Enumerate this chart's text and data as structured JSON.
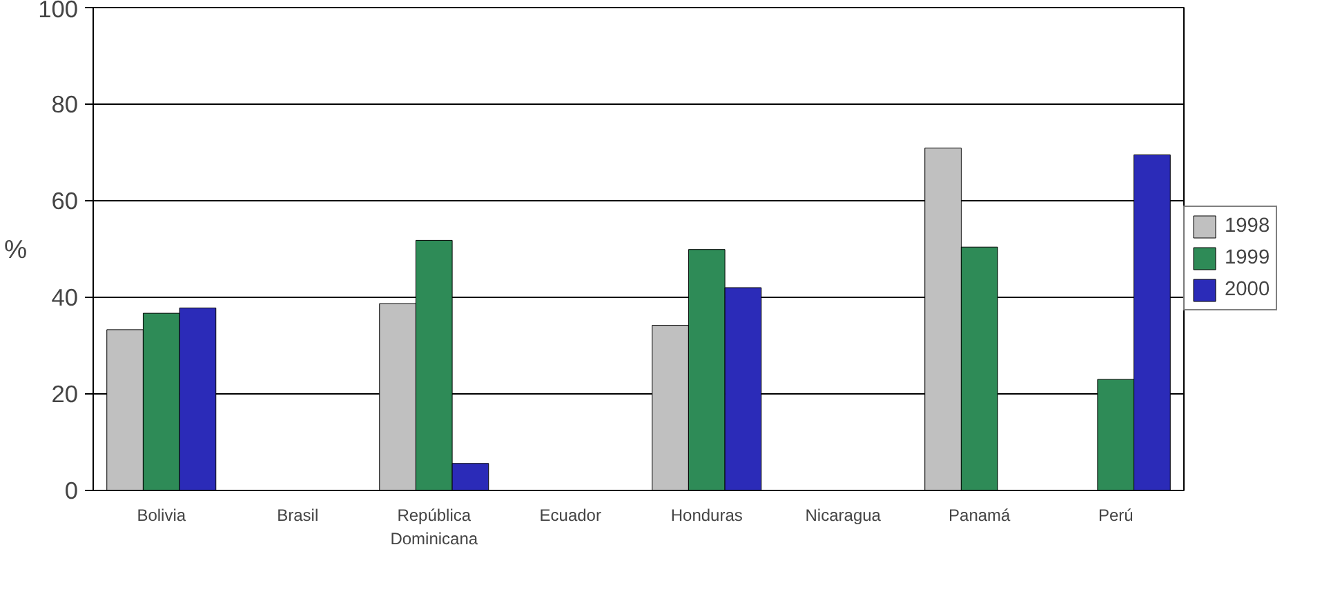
{
  "chart_data": {
    "type": "bar",
    "ylabel": "%",
    "categories": [
      "Bolivia",
      "Brasil",
      "República Dominicana",
      "Ecuador",
      "Honduras",
      "Nicaragua",
      "Panamá",
      "Perú"
    ],
    "series": [
      {
        "name": "1998",
        "color": "#c0c0c0",
        "values": [
          33.3,
          null,
          38.7,
          null,
          34.2,
          null,
          70.9,
          null
        ]
      },
      {
        "name": "1999",
        "color": "#2e8b57",
        "values": [
          36.7,
          null,
          51.8,
          null,
          49.9,
          null,
          50.4,
          23
        ]
      },
      {
        "name": "2000",
        "color": "#2b2bb8",
        "values": [
          37.8,
          null,
          5.6,
          null,
          42,
          null,
          null,
          69.5
        ]
      }
    ],
    "ylim": [
      0,
      100
    ],
    "yticks": [
      0,
      20,
      40,
      60,
      80,
      100
    ],
    "grid": "y",
    "legend": "right"
  }
}
